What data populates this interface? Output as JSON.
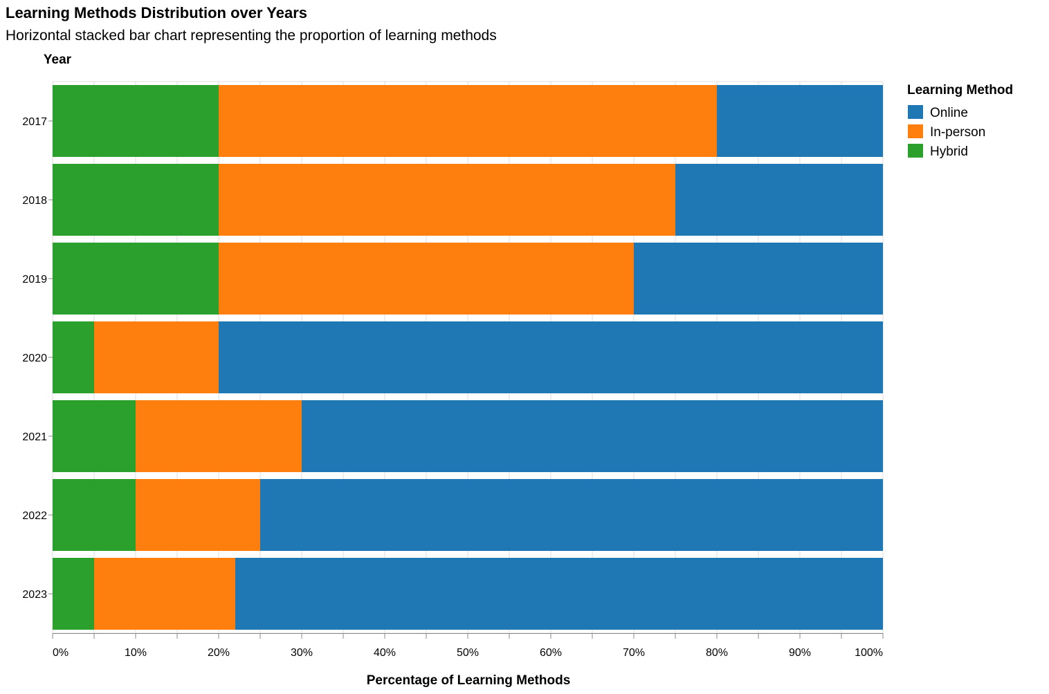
{
  "chart_data": {
    "type": "bar",
    "orientation": "horizontal",
    "stacked": true,
    "title": "Learning Methods Distribution over Years",
    "subtitle": "Horizontal stacked bar chart representing the proportion of learning methods",
    "ylabel": "Year",
    "xlabel": "Percentage of Learning Methods",
    "categories": [
      "2017",
      "2018",
      "2019",
      "2020",
      "2021",
      "2022",
      "2023"
    ],
    "series": [
      {
        "name": "Hybrid",
        "color": "#2ca02c",
        "values": [
          20,
          20,
          20,
          5,
          10,
          10,
          5
        ]
      },
      {
        "name": "In-person",
        "color": "#ff7f0e",
        "values": [
          60,
          55,
          50,
          15,
          20,
          15,
          17
        ]
      },
      {
        "name": "Online",
        "color": "#1f77b4",
        "values": [
          20,
          25,
          30,
          80,
          70,
          75,
          78
        ]
      }
    ],
    "xlim": [
      0,
      100
    ],
    "x_ticks": [
      "0%",
      "10%",
      "20%",
      "30%",
      "40%",
      "50%",
      "60%",
      "70%",
      "80%",
      "90%",
      "100%"
    ],
    "grid": true,
    "legend": {
      "title": "Learning Method",
      "placement": "right",
      "order": [
        "Online",
        "In-person",
        "Hybrid"
      ]
    }
  }
}
